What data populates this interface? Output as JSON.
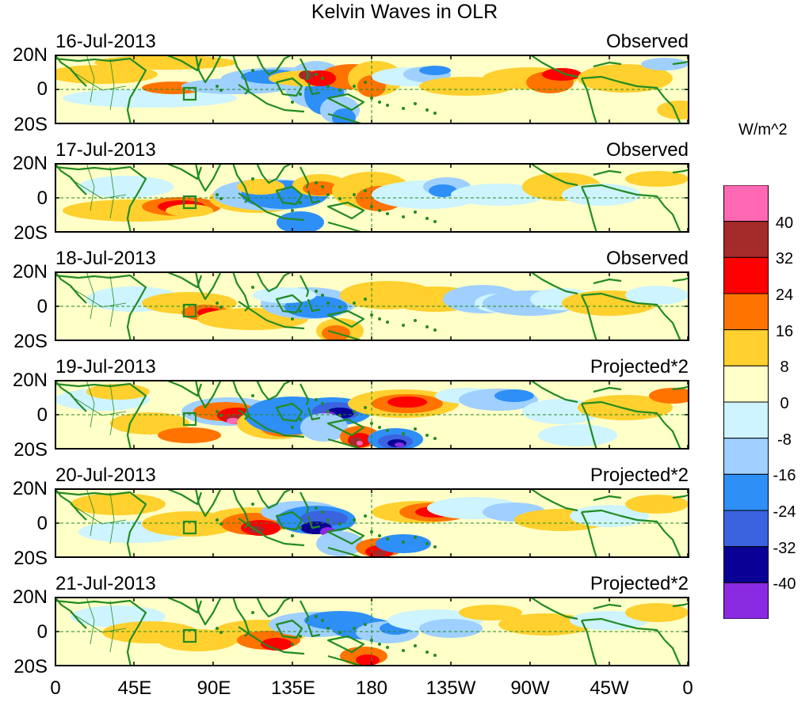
{
  "title": "Kelvin Waves in OLR",
  "colorbar": {
    "units": "W/m^2",
    "levels": [
      "40",
      "32",
      "24",
      "16",
      "8",
      "0",
      "-8",
      "-16",
      "-24",
      "-32",
      "-40"
    ],
    "colors": [
      "#ff69b4",
      "#a52a2a",
      "#ff0000",
      "#ff7300",
      "#ffd02e",
      "#ffffc8",
      "#cdf4ff",
      "#9fd0ff",
      "#2e8ff7",
      "#3b63df",
      "#0a0096",
      "#8a2be2"
    ]
  },
  "lat_labels": [
    "20N",
    "0",
    "20S"
  ],
  "lon_labels": [
    "0",
    "45E",
    "90E",
    "135E",
    "180",
    "135W",
    "90W",
    "45W",
    "0"
  ],
  "coastline_color": "#228b22",
  "panels": [
    {
      "date": "16-Jul-2013",
      "mode": "Observed"
    },
    {
      "date": "17-Jul-2013",
      "mode": "Observed"
    },
    {
      "date": "18-Jul-2013",
      "mode": "Observed"
    },
    {
      "date": "19-Jul-2013",
      "mode": "Projected*2"
    },
    {
      "date": "20-Jul-2013",
      "mode": "Projected*2"
    },
    {
      "date": "21-Jul-2013",
      "mode": "Projected*2"
    }
  ]
}
